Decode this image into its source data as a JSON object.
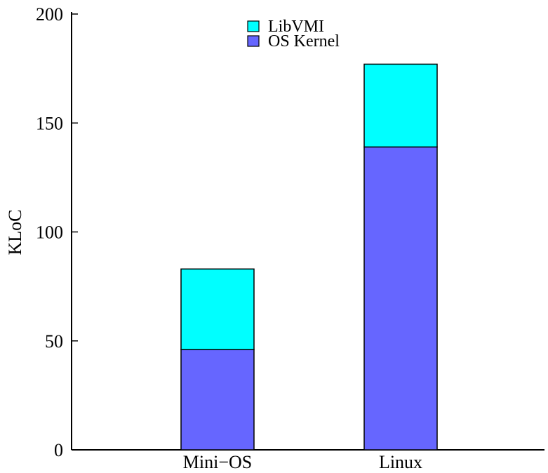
{
  "chart_data": {
    "type": "bar",
    "stacked": true,
    "title": "",
    "xlabel": "",
    "ylabel": "KLoC",
    "categories": [
      "Mini−OS",
      "Linux"
    ],
    "series": [
      {
        "name": "OS Kernel",
        "color": "#6666ff",
        "values": [
          46,
          139
        ]
      },
      {
        "name": "LibVMI",
        "color": "#00ffff",
        "values": [
          37,
          38
        ]
      }
    ],
    "legend_order": [
      "LibVMI",
      "OS Kernel"
    ],
    "legend_position": "top-center",
    "ylim": [
      0,
      200
    ],
    "yticks": [
      0,
      50,
      100,
      150,
      200
    ],
    "grid": false
  }
}
